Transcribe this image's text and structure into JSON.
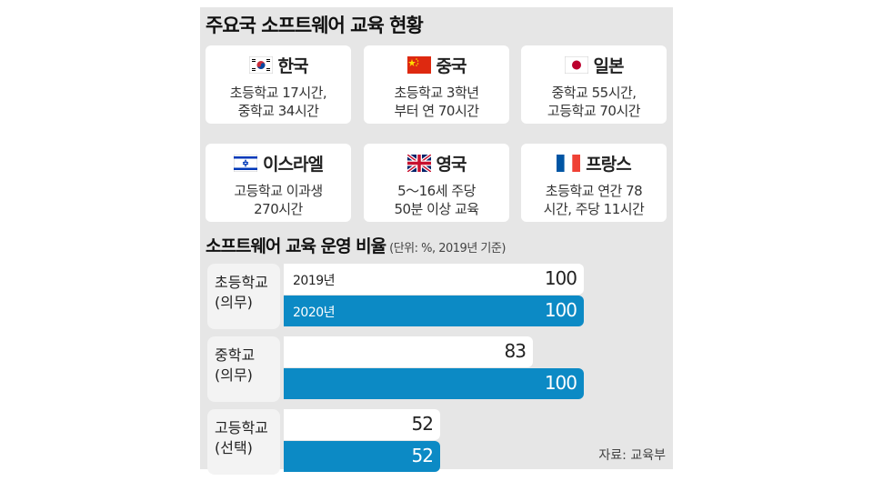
{
  "title": "주요국 소프트웨어 교육 현황",
  "countries": [
    {
      "name": "한국",
      "flag_icon": "south-korea-flag-icon",
      "desc": [
        "초등학교 17시간,",
        "중학교 34시간"
      ]
    },
    {
      "name": "중국",
      "flag_icon": "china-flag-icon",
      "desc": [
        "초등학교 3학년",
        "부터 연 70시간"
      ]
    },
    {
      "name": "일본",
      "flag_icon": "japan-flag-icon",
      "desc": [
        "중학교 55시간,",
        "고등학교 70시간"
      ]
    },
    {
      "name": "이스라엘",
      "flag_icon": "israel-flag-icon",
      "desc": [
        "고등학교 이과생",
        "270시간"
      ]
    },
    {
      "name": "영국",
      "flag_icon": "uk-flag-icon",
      "desc": [
        "5～16세 주당",
        "50분 이상 교육"
      ]
    },
    {
      "name": "프랑스",
      "flag_icon": "france-flag-icon",
      "desc": [
        "초등학교 연간 78",
        "시간, 주당 11시간"
      ]
    }
  ],
  "chart_title": "소프트웨어 교육 운영 비율",
  "chart_subtitle": "(단위: %, 2019년 기준)",
  "source": "자료: 교육부",
  "colors": {
    "bar_2019": "#ffffff",
    "bar_2020": "#0c8ac5",
    "panel_bg": "#e6e6e6"
  },
  "chart_data": {
    "type": "bar",
    "orientation": "horizontal",
    "categories": [
      [
        "초등학교",
        "(의무)"
      ],
      [
        "중학교",
        "(의무)"
      ],
      [
        "고등학교",
        "(선택)"
      ]
    ],
    "series": [
      {
        "name": "2019년",
        "values": [
          100,
          83,
          52
        ]
      },
      {
        "name": "2020년",
        "values": [
          100,
          100,
          52
        ]
      }
    ],
    "xlim": [
      0,
      100
    ],
    "legend": "inline on first group bars",
    "grid": false
  }
}
